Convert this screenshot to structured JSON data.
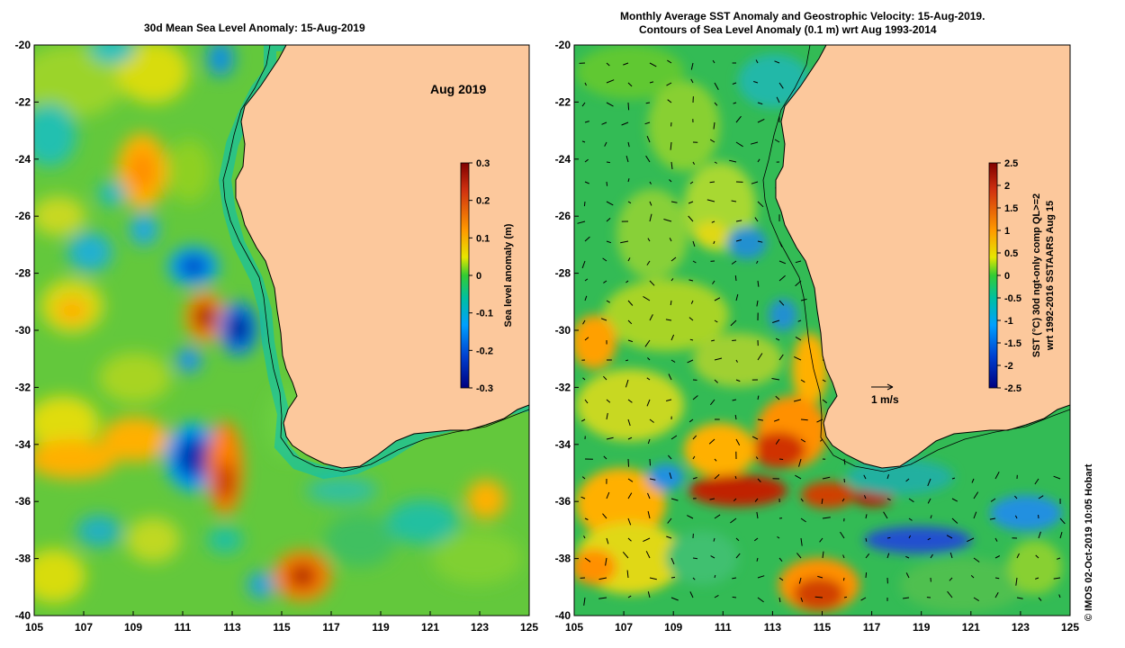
{
  "left_panel": {
    "title": "30d Mean Sea Level Anomaly: 15-Aug-2019",
    "annotation": "Aug 2019",
    "colorbar": {
      "label": "Sea level anomaly (m)",
      "ticks": [
        "0.3",
        "0.2",
        "0.1",
        "0",
        "-0.1",
        "-0.2",
        "-0.3"
      ],
      "range": [
        -0.3,
        0.3
      ]
    }
  },
  "right_panel": {
    "title_line1": "Monthly Average SST Anomaly  and Geostrophic Velocity: 15-Aug-2019.",
    "title_line2": "Contours of Sea Level Anomaly (0.1 m) wrt Aug 1993-2014",
    "scale_label": "1 m/s",
    "colorbar": {
      "label_line1": "SST (°C) 30d ngt-only comp QL>=2",
      "label_line2": "wrt 1992-2016 SSTAARS Aug 15",
      "ticks": [
        "2.5",
        "2",
        "1.5",
        "1",
        "0.5",
        "0",
        "-0.5",
        "-1",
        "-1.5",
        "-2",
        "-2.5"
      ],
      "range": [
        -2.5,
        2.5
      ]
    }
  },
  "axes": {
    "lat_ticks": [
      "-20",
      "-22",
      "-24",
      "-26",
      "-28",
      "-30",
      "-32",
      "-34",
      "-36",
      "-38",
      "-40"
    ],
    "lon_ticks": [
      "105",
      "107",
      "109",
      "111",
      "113",
      "115",
      "117",
      "119",
      "121",
      "123",
      "125"
    ],
    "lat_range": [
      -40,
      -20
    ],
    "lon_range": [
      105,
      125
    ]
  },
  "credit": "© IMOS 02-Oct-2019 10:05 Hobart",
  "colors": {
    "land": "#fcc89c",
    "ocean_base_left": "#63c83c",
    "ocean_base_right": "#33bb55"
  }
}
